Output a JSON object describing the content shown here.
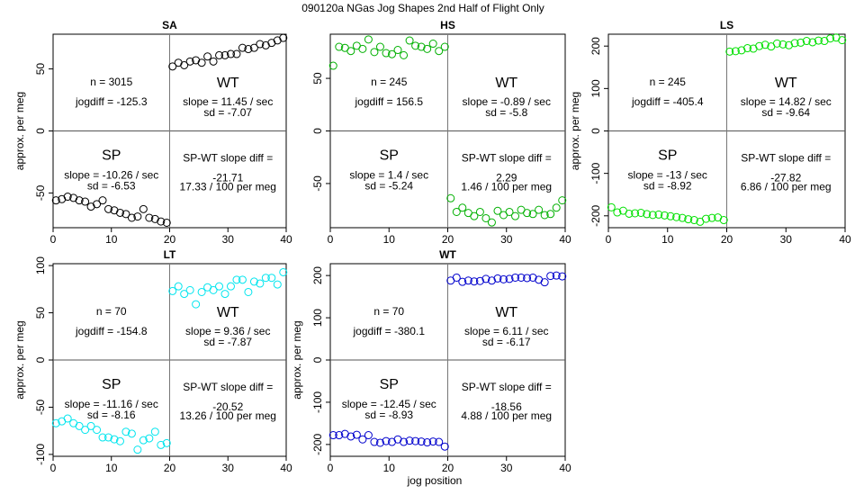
{
  "figure": {
    "title": "090120a   NGas Jog Shapes 2nd Half of Flight Only",
    "xlabel": "jog position"
  },
  "chart_data": [
    {
      "type": "scatter",
      "panel": "SA",
      "color": "#000000",
      "ylabel": "approx. per meg",
      "xlim": [
        0,
        40
      ],
      "ylim": [
        -78,
        78
      ],
      "xticks": [
        0,
        10,
        20,
        30,
        40
      ],
      "yticks": [
        -50,
        0,
        50
      ],
      "split_x": 20,
      "split_y": 0,
      "n_text": "n = 3015",
      "jogdiff_text": "jogdiff = -125.3",
      "sp_label": "SP",
      "sp_slope": "slope = -10.26 / sec",
      "sp_sd": "sd = -6.53",
      "wt_label": "WT",
      "wt_slope": "slope = 11.45 / sec",
      "wt_sd": "sd = -7.07",
      "diff_label": "SP-WT slope diff =",
      "diff_value": "-21.71",
      "diff_per100": "17.33 / 100 per meg",
      "points": [
        [
          0.5,
          -56
        ],
        [
          1.5,
          -55
        ],
        [
          2.5,
          -53
        ],
        [
          3.5,
          -54
        ],
        [
          4.5,
          -56
        ],
        [
          5.5,
          -57
        ],
        [
          6.5,
          -61
        ],
        [
          7.5,
          -59
        ],
        [
          8.5,
          -56
        ],
        [
          9.5,
          -63
        ],
        [
          10.5,
          -64
        ],
        [
          11.5,
          -66
        ],
        [
          12.5,
          -67
        ],
        [
          13.5,
          -70
        ],
        [
          14.5,
          -69
        ],
        [
          15.5,
          -63
        ],
        [
          16.5,
          -70
        ],
        [
          17.5,
          -71
        ],
        [
          18.5,
          -73
        ],
        [
          19.5,
          -74
        ],
        [
          20.5,
          52
        ],
        [
          21.5,
          55
        ],
        [
          22.5,
          53
        ],
        [
          23.5,
          56
        ],
        [
          24.5,
          57
        ],
        [
          25.5,
          55
        ],
        [
          26.5,
          60
        ],
        [
          27.5,
          56
        ],
        [
          28.5,
          61
        ],
        [
          29.5,
          61
        ],
        [
          30.5,
          62
        ],
        [
          31.5,
          62
        ],
        [
          32.5,
          67
        ],
        [
          33.5,
          66
        ],
        [
          34.5,
          67
        ],
        [
          35.5,
          70
        ],
        [
          36.5,
          69
        ],
        [
          37.5,
          71
        ],
        [
          38.5,
          73
        ],
        [
          39.5,
          75
        ]
      ]
    },
    {
      "type": "scatter",
      "panel": "HS",
      "color": "#00b000",
      "ylabel": "",
      "xlim": [
        0,
        40
      ],
      "ylim": [
        -92,
        92
      ],
      "xticks": [
        0,
        10,
        20,
        30,
        40
      ],
      "yticks": [
        -50,
        0,
        50
      ],
      "split_x": 20,
      "split_y": 0,
      "n_text": "n = 245",
      "jogdiff_text": "jogdiff = 156.5",
      "sp_label": "SP",
      "sp_slope": "slope = 1.4 / sec",
      "sp_sd": "sd = -5.24",
      "wt_label": "WT",
      "wt_slope": "slope = -0.89 / sec",
      "wt_sd": "sd = -5.8",
      "diff_label": "SP-WT slope diff =",
      "diff_value": "2.29",
      "diff_per100": "1.46 / 100 per meg",
      "points": [
        [
          0.5,
          62
        ],
        [
          1.5,
          80
        ],
        [
          2.5,
          79
        ],
        [
          3.5,
          76
        ],
        [
          4.5,
          81
        ],
        [
          5.5,
          78
        ],
        [
          6.5,
          87
        ],
        [
          7.5,
          75
        ],
        [
          8.5,
          80
        ],
        [
          9.5,
          74
        ],
        [
          10.5,
          73
        ],
        [
          11.5,
          77
        ],
        [
          12.5,
          72
        ],
        [
          13.5,
          86
        ],
        [
          14.5,
          81
        ],
        [
          15.5,
          80
        ],
        [
          16.5,
          78
        ],
        [
          17.5,
          83
        ],
        [
          18.5,
          76
        ],
        [
          19.5,
          80
        ],
        [
          20.5,
          -64
        ],
        [
          21.5,
          -77
        ],
        [
          22.5,
          -73
        ],
        [
          23.5,
          -78
        ],
        [
          24.5,
          -81
        ],
        [
          25.5,
          -77
        ],
        [
          26.5,
          -83
        ],
        [
          27.5,
          -87
        ],
        [
          28.5,
          -76
        ],
        [
          29.5,
          -80
        ],
        [
          30.5,
          -77
        ],
        [
          31.5,
          -81
        ],
        [
          32.5,
          -75
        ],
        [
          33.5,
          -78
        ],
        [
          34.5,
          -79
        ],
        [
          35.5,
          -75
        ],
        [
          36.5,
          -80
        ],
        [
          37.5,
          -79
        ],
        [
          38.5,
          -73
        ],
        [
          39.5,
          -66
        ]
      ]
    },
    {
      "type": "scatter",
      "panel": "LS",
      "color": "#00e000",
      "ylabel": "approx. per meg",
      "xlim": [
        0,
        40
      ],
      "ylim": [
        -228,
        228
      ],
      "xticks": [
        0,
        10,
        20,
        30,
        40
      ],
      "yticks": [
        -200,
        -100,
        0,
        100,
        200
      ],
      "split_x": 20,
      "split_y": 0,
      "n_text": "n = 245",
      "jogdiff_text": "jogdiff = -405.4",
      "sp_label": "SP",
      "sp_slope": "slope = -13 / sec",
      "sp_sd": "sd = -8.92",
      "wt_label": "WT",
      "wt_slope": "slope = 14.82 / sec",
      "wt_sd": "sd = -9.64",
      "diff_label": "SP-WT slope diff =",
      "diff_value": "-27.82",
      "diff_per100": "6.86 / 100 per meg",
      "points": [
        [
          0.5,
          -180
        ],
        [
          1.5,
          -192
        ],
        [
          2.5,
          -188
        ],
        [
          3.5,
          -195
        ],
        [
          4.5,
          -194
        ],
        [
          5.5,
          -193
        ],
        [
          6.5,
          -196
        ],
        [
          7.5,
          -198
        ],
        [
          8.5,
          -197
        ],
        [
          9.5,
          -199
        ],
        [
          10.5,
          -201
        ],
        [
          11.5,
          -203
        ],
        [
          12.5,
          -205
        ],
        [
          13.5,
          -208
        ],
        [
          14.5,
          -210
        ],
        [
          15.5,
          -214
        ],
        [
          16.5,
          -207
        ],
        [
          17.5,
          -205
        ],
        [
          18.5,
          -204
        ],
        [
          19.5,
          -210
        ],
        [
          20.5,
          187
        ],
        [
          21.5,
          188
        ],
        [
          22.5,
          190
        ],
        [
          23.5,
          195
        ],
        [
          24.5,
          194
        ],
        [
          25.5,
          200
        ],
        [
          26.5,
          203
        ],
        [
          27.5,
          199
        ],
        [
          28.5,
          206
        ],
        [
          29.5,
          204
        ],
        [
          30.5,
          202
        ],
        [
          31.5,
          207
        ],
        [
          32.5,
          208
        ],
        [
          33.5,
          212
        ],
        [
          34.5,
          209
        ],
        [
          35.5,
          213
        ],
        [
          36.5,
          212
        ],
        [
          37.5,
          218
        ],
        [
          38.5,
          220
        ],
        [
          39.5,
          214
        ]
      ]
    },
    {
      "type": "scatter",
      "panel": "LT",
      "color": "#00e5ee",
      "ylabel": "approx. per meg",
      "xlim": [
        0,
        40
      ],
      "ylim": [
        -102,
        102
      ],
      "xticks": [
        0,
        10,
        20,
        30,
        40
      ],
      "yticks": [
        -100,
        -50,
        0,
        50,
        100
      ],
      "split_x": 20,
      "split_y": 0,
      "n_text": "n = 70",
      "jogdiff_text": "jogdiff = -154.8",
      "sp_label": "SP",
      "sp_slope": "slope = -11.16 / sec",
      "sp_sd": "sd = -8.16",
      "wt_label": "WT",
      "wt_slope": "slope = 9.36 / sec",
      "wt_sd": "sd = -7.87",
      "diff_label": "SP-WT slope diff =",
      "diff_value": "-20.52",
      "diff_per100": "13.26 / 100 per meg",
      "points": [
        [
          0.5,
          -67
        ],
        [
          1.5,
          -65
        ],
        [
          2.5,
          -62
        ],
        [
          3.5,
          -67
        ],
        [
          4.5,
          -70
        ],
        [
          5.5,
          -74
        ],
        [
          6.5,
          -70
        ],
        [
          7.5,
          -74
        ],
        [
          8.5,
          -82
        ],
        [
          9.5,
          -82
        ],
        [
          10.5,
          -84
        ],
        [
          11.5,
          -86
        ],
        [
          12.5,
          -76
        ],
        [
          13.5,
          -78
        ],
        [
          14.5,
          -95
        ],
        [
          15.5,
          -85
        ],
        [
          16.5,
          -83
        ],
        [
          17.5,
          -76
        ],
        [
          18.5,
          -90
        ],
        [
          19.5,
          -88
        ],
        [
          20.5,
          73
        ],
        [
          21.5,
          78
        ],
        [
          22.5,
          70
        ],
        [
          23.5,
          74
        ],
        [
          24.5,
          59
        ],
        [
          25.5,
          72
        ],
        [
          26.5,
          77
        ],
        [
          27.5,
          74
        ],
        [
          28.5,
          78
        ],
        [
          29.5,
          70
        ],
        [
          30.5,
          78
        ],
        [
          31.5,
          85
        ],
        [
          32.5,
          85
        ],
        [
          33.5,
          72
        ],
        [
          34.5,
          83
        ],
        [
          35.5,
          81
        ],
        [
          36.5,
          87
        ],
        [
          37.5,
          87
        ],
        [
          38.5,
          80
        ],
        [
          39.5,
          93
        ]
      ]
    },
    {
      "type": "scatter",
      "panel": "WT",
      "color": "#0000cd",
      "ylabel": "approx. per meg",
      "xlim": [
        0,
        40
      ],
      "ylim": [
        -228,
        228
      ],
      "xticks": [
        0,
        10,
        20,
        30,
        40
      ],
      "yticks": [
        -200,
        -100,
        0,
        100,
        200
      ],
      "split_x": 20,
      "split_y": 0,
      "n_text": "n = 70",
      "jogdiff_text": "jogdiff = -380.1",
      "sp_label": "SP",
      "sp_slope": "slope = -12.45 / sec",
      "sp_sd": "sd = -8.93",
      "wt_label": "WT",
      "wt_slope": "slope = 6.11 / sec",
      "wt_sd": "sd = -6.17",
      "diff_label": "SP-WT slope diff =",
      "diff_value": "-18.56",
      "diff_per100": "4.88 / 100 per meg",
      "points": [
        [
          0.5,
          -178
        ],
        [
          1.5,
          -178
        ],
        [
          2.5,
          -175
        ],
        [
          3.5,
          -181
        ],
        [
          4.5,
          -177
        ],
        [
          5.5,
          -188
        ],
        [
          6.5,
          -178
        ],
        [
          7.5,
          -194
        ],
        [
          8.5,
          -196
        ],
        [
          9.5,
          -192
        ],
        [
          10.5,
          -194
        ],
        [
          11.5,
          -188
        ],
        [
          12.5,
          -194
        ],
        [
          13.5,
          -191
        ],
        [
          14.5,
          -192
        ],
        [
          15.5,
          -193
        ],
        [
          16.5,
          -195
        ],
        [
          17.5,
          -193
        ],
        [
          18.5,
          -194
        ],
        [
          19.5,
          -205
        ],
        [
          20.5,
          188
        ],
        [
          21.5,
          195
        ],
        [
          22.5,
          185
        ],
        [
          23.5,
          188
        ],
        [
          24.5,
          186
        ],
        [
          25.5,
          187
        ],
        [
          26.5,
          192
        ],
        [
          27.5,
          188
        ],
        [
          28.5,
          193
        ],
        [
          29.5,
          191
        ],
        [
          30.5,
          192
        ],
        [
          31.5,
          195
        ],
        [
          32.5,
          195
        ],
        [
          33.5,
          194
        ],
        [
          34.5,
          195
        ],
        [
          35.5,
          190
        ],
        [
          36.5,
          184
        ],
        [
          37.5,
          199
        ],
        [
          38.5,
          200
        ],
        [
          39.5,
          198
        ]
      ]
    }
  ]
}
